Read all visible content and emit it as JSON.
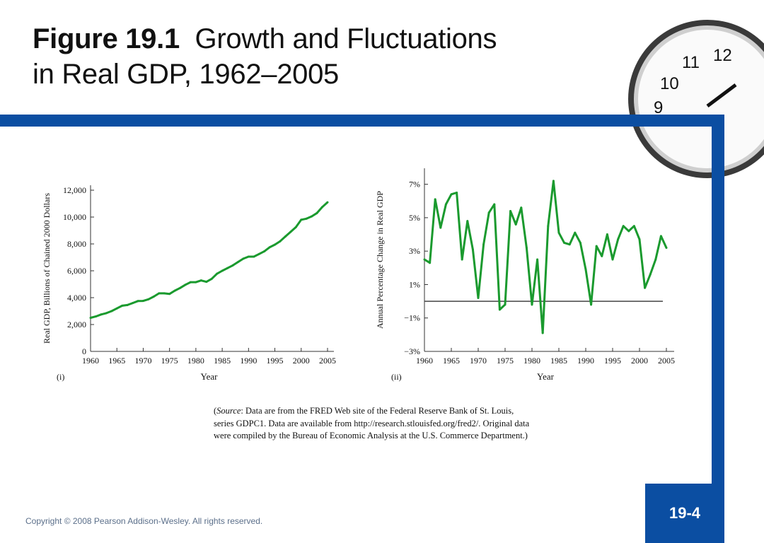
{
  "slide": {
    "title_bold": "Figure 19.1",
    "title_rest_line1": "Growth and Fluctuations",
    "title_line2": "in Real GDP, 1962–2005",
    "page_number": "19-4",
    "copyright": "Copyright © 2008 Pearson Addison-Wesley. All rights reserved.",
    "source_label": "Source",
    "source_open": "(",
    "source_text": ": Data are from the FRED Web site of the Federal Reserve Bank of St. Louis, series GDPC1. Data are available from http://research.stlouisfed.org/fred2/. Original data were compiled by the Bureau of Economic Analysis at the U.S. Commerce Department.)",
    "clock_numbers": [
      "12",
      "11",
      "10",
      "9"
    ]
  },
  "colors": {
    "accent": "#0b4ea2",
    "line": "#1a9a2e",
    "axis": "#333333",
    "text": "#111111"
  },
  "chart_data": [
    {
      "type": "line",
      "panel_label": "(i)",
      "xlabel": "Year",
      "ylabel": "Real GDP, Billions of Chained 2000 Dollars",
      "xlim": [
        1960,
        2005
      ],
      "ylim": [
        0,
        12000
      ],
      "x_ticks": [
        1960,
        1965,
        1970,
        1975,
        1980,
        1985,
        1990,
        1995,
        2000,
        2005
      ],
      "x_tick_labels": [
        "1960",
        "1965",
        "1970",
        "1975",
        "1980",
        "1985",
        "1990",
        "1995",
        "2000",
        "2005"
      ],
      "y_ticks": [
        0,
        2000,
        4000,
        6000,
        8000,
        10000,
        12000
      ],
      "y_tick_labels": [
        "0",
        "2,000",
        "4,000",
        "6,000",
        "8,000",
        "10,000",
        "12,000"
      ],
      "x": [
        1960,
        1961,
        1962,
        1963,
        1964,
        1965,
        1966,
        1967,
        1968,
        1969,
        1970,
        1971,
        1972,
        1973,
        1974,
        1975,
        1976,
        1977,
        1978,
        1979,
        1980,
        1981,
        1982,
        1983,
        1984,
        1985,
        1986,
        1987,
        1988,
        1989,
        1990,
        1991,
        1992,
        1993,
        1994,
        1995,
        1996,
        1997,
        1998,
        1999,
        2000,
        2001,
        2002,
        2003,
        2004,
        2005
      ],
      "values": [
        2500,
        2600,
        2750,
        2850,
        3000,
        3200,
        3400,
        3450,
        3600,
        3750,
        3760,
        3880,
        4080,
        4320,
        4320,
        4280,
        4520,
        4720,
        4960,
        5150,
        5150,
        5280,
        5180,
        5400,
        5780,
        6000,
        6200,
        6400,
        6650,
        6900,
        7050,
        7050,
        7250,
        7450,
        7750,
        7950,
        8200,
        8550,
        8900,
        9250,
        9800,
        9880,
        10050,
        10300,
        10750,
        11100
      ]
    },
    {
      "type": "line",
      "panel_label": "(ii)",
      "xlabel": "Year",
      "ylabel": "Annual Percentage Change in Real GDP",
      "xlim": [
        1960,
        2005
      ],
      "ylim": [
        -3,
        8
      ],
      "x_ticks": [
        1960,
        1965,
        1970,
        1975,
        1980,
        1985,
        1990,
        1995,
        2000,
        2005
      ],
      "x_tick_labels": [
        "1960",
        "1965",
        "1970",
        "1975",
        "1980",
        "1985",
        "1990",
        "1995",
        "2000",
        "2005"
      ],
      "y_ticks": [
        -3,
        -1,
        1,
        3,
        5,
        7
      ],
      "y_tick_labels": [
        "−3%",
        "−1%",
        "1%",
        "3%",
        "5%",
        "7%"
      ],
      "reference_line": 0,
      "x": [
        1960,
        1961,
        1962,
        1963,
        1964,
        1965,
        1966,
        1967,
        1968,
        1969,
        1970,
        1971,
        1972,
        1973,
        1974,
        1975,
        1976,
        1977,
        1978,
        1979,
        1980,
        1981,
        1982,
        1983,
        1984,
        1985,
        1986,
        1987,
        1988,
        1989,
        1990,
        1991,
        1992,
        1993,
        1994,
        1995,
        1996,
        1997,
        1998,
        1999,
        2000,
        2001,
        2002,
        2003,
        2004,
        2005
      ],
      "values": [
        2.5,
        2.3,
        6.1,
        4.4,
        5.8,
        6.4,
        6.5,
        2.5,
        4.8,
        3.1,
        0.2,
        3.4,
        5.3,
        5.8,
        -0.5,
        -0.2,
        5.4,
        4.6,
        5.6,
        3.2,
        -0.2,
        2.5,
        -1.9,
        4.5,
        7.2,
        4.1,
        3.5,
        3.4,
        4.1,
        3.5,
        1.9,
        -0.2,
        3.3,
        2.7,
        4.0,
        2.5,
        3.7,
        4.5,
        4.2,
        4.5,
        3.7,
        0.8,
        1.6,
        2.5,
        3.9,
        3.2
      ]
    }
  ]
}
